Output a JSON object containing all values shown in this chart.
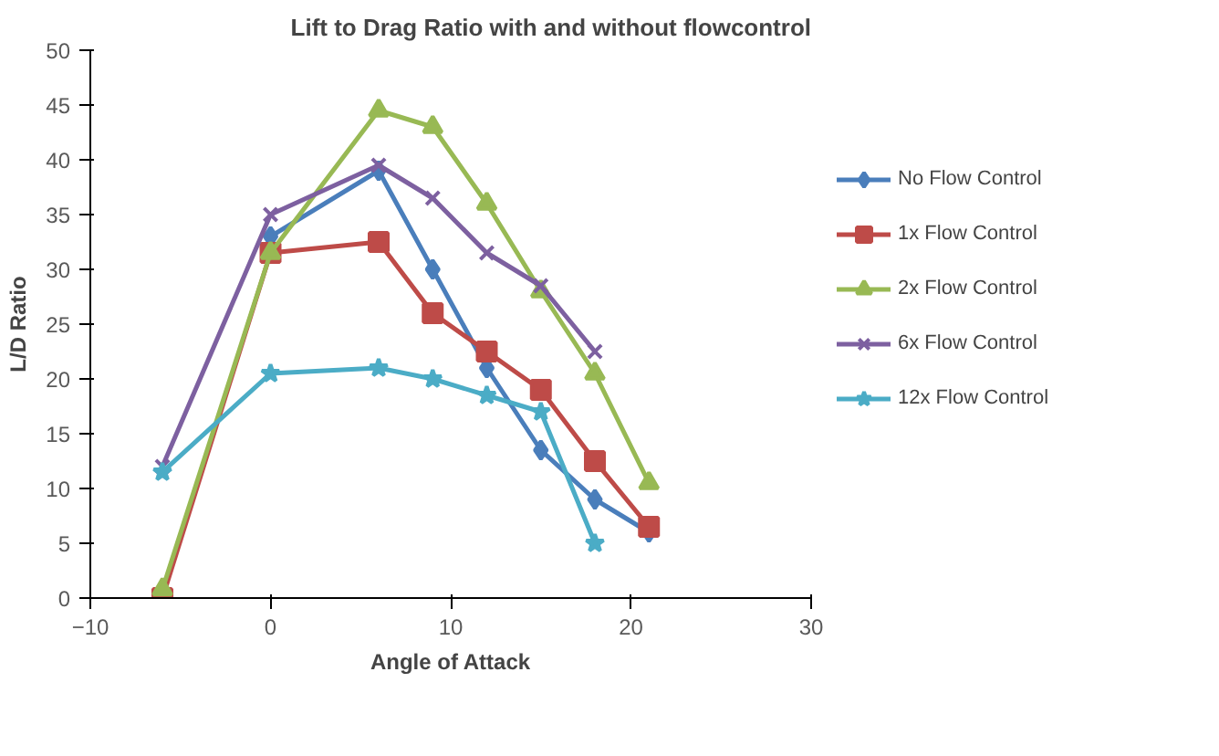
{
  "chart_data": {
    "type": "line",
    "title": "Lift to Drag Ratio with and without flowcontrol",
    "xlabel": "Angle of Attack",
    "ylabel": "L/D Ratio",
    "xlim": [
      -10,
      30
    ],
    "xticks": [
      -10,
      0,
      10,
      20,
      30
    ],
    "ylim": [
      0,
      50
    ],
    "yticks": [
      0,
      5,
      10,
      15,
      20,
      25,
      30,
      35,
      40,
      45,
      50
    ],
    "grid": false,
    "legend": "right",
    "series": [
      {
        "name": "No Flow Control",
        "color": "#4a7ebb",
        "marker": "diamond",
        "x": [
          0,
          6,
          9,
          12,
          15,
          18,
          21
        ],
        "values": [
          33,
          39,
          30,
          21,
          13.5,
          9,
          6
        ]
      },
      {
        "name": "1x Flow Control",
        "color": "#be4b48",
        "marker": "square",
        "x": [
          -6,
          0,
          6,
          9,
          12,
          15,
          18,
          21
        ],
        "values": [
          0,
          31.5,
          32.5,
          26,
          22.5,
          19,
          12.5,
          6.5
        ]
      },
      {
        "name": "2x Flow Control",
        "color": "#98b954",
        "marker": "triangle",
        "x": [
          -6,
          0,
          6,
          9,
          12,
          15,
          18,
          21
        ],
        "values": [
          0.8,
          31.5,
          44.5,
          43,
          36,
          28,
          20.5,
          10.5
        ]
      },
      {
        "name": "6x Flow Control",
        "color": "#7d60a0",
        "marker": "cross",
        "x": [
          -6,
          0,
          6,
          9,
          12,
          15,
          18
        ],
        "values": [
          12,
          35,
          39.5,
          36.5,
          31.5,
          28.5,
          22.5
        ]
      },
      {
        "name": "12x Flow Control",
        "color": "#4bacc6",
        "marker": "star",
        "x": [
          -6,
          0,
          6,
          9,
          12,
          15,
          18
        ],
        "values": [
          11.5,
          20.5,
          21,
          20,
          18.5,
          17,
          5
        ]
      }
    ]
  }
}
